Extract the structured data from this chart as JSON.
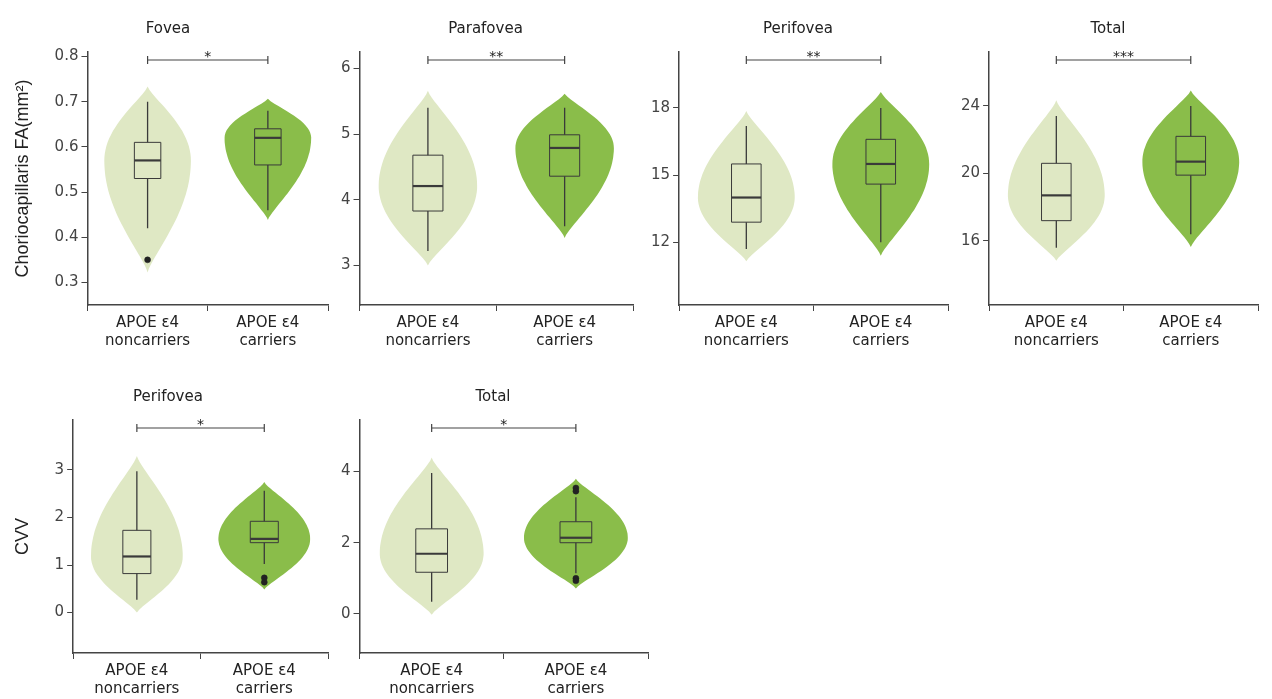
{
  "chart_data": [
    {
      "type": "box",
      "title": "Fovea",
      "ylabel": "Choriocapillaris FA(mm²)",
      "categories": [
        "APOE ε4 noncarriers",
        "APOE ε4 carriers"
      ],
      "colors": [
        "#dfe8c4",
        "#8abd4a"
      ],
      "ylim": [
        0.25,
        0.81
      ],
      "yticks": [
        0.3,
        0.4,
        0.5,
        0.6,
        0.7,
        0.8
      ],
      "annotations": [
        "*"
      ],
      "boxes": [
        {
          "low": 0.42,
          "q1": 0.53,
          "median": 0.57,
          "q3": 0.61,
          "high": 0.7,
          "outliers": [
            0.35
          ]
        },
        {
          "low": 0.46,
          "q1": 0.56,
          "median": 0.62,
          "q3": 0.64,
          "high": 0.68
        }
      ]
    },
    {
      "type": "box",
      "title": "Parafovea",
      "categories": [
        "APOE ε4 noncarriers",
        "APOE ε4 carriers"
      ],
      "colors": [
        "#dfe8c4",
        "#8abd4a"
      ],
      "ylim": [
        2.4,
        6.25
      ],
      "yticks": [
        3,
        4,
        5,
        6
      ],
      "annotations": [
        "**"
      ],
      "boxes": [
        {
          "low": 3.22,
          "q1": 3.83,
          "median": 4.21,
          "q3": 4.68,
          "high": 5.4
        },
        {
          "low": 3.6,
          "q1": 4.36,
          "median": 4.79,
          "q3": 4.99,
          "high": 5.4
        }
      ]
    },
    {
      "type": "box",
      "title": "Perifovea",
      "categories": [
        "APOE ε4 noncarriers",
        "APOE ε4 carriers"
      ],
      "colors": [
        "#dfe8c4",
        "#8abd4a"
      ],
      "ylim": [
        9.2,
        20.5
      ],
      "yticks": [
        12,
        15,
        18
      ],
      "annotations": [
        "**"
      ],
      "boxes": [
        {
          "low": 11.7,
          "q1": 12.9,
          "median": 14.0,
          "q3": 15.5,
          "high": 17.2
        },
        {
          "low": 12.0,
          "q1": 14.6,
          "median": 15.5,
          "q3": 16.6,
          "high": 18.0
        }
      ]
    },
    {
      "type": "box",
      "title": "Total",
      "categories": [
        "APOE ε4 noncarriers",
        "APOE ε4 carriers"
      ],
      "colors": [
        "#dfe8c4",
        "#8abd4a"
      ],
      "ylim": [
        12.2,
        27.2
      ],
      "yticks": [
        16,
        20,
        24
      ],
      "annotations": [
        "***"
      ],
      "boxes": [
        {
          "low": 15.6,
          "q1": 17.2,
          "median": 18.7,
          "q3": 20.6,
          "high": 23.4
        },
        {
          "low": 16.4,
          "q1": 19.9,
          "median": 20.7,
          "q3": 22.2,
          "high": 24.0
        }
      ]
    },
    {
      "type": "box",
      "title": "Perifovea",
      "ylabel": "CVV",
      "categories": [
        "APOE ε4 noncarriers",
        "APOE ε4 carriers"
      ],
      "colors": [
        "#dfe8c4",
        "#8abd4a"
      ],
      "ylim": [
        -0.85,
        4.05
      ],
      "yticks": [
        0,
        1,
        2,
        3
      ],
      "annotations": [
        "*"
      ],
      "boxes": [
        {
          "low": 0.27,
          "q1": 0.82,
          "median": 1.18,
          "q3": 1.73,
          "high": 2.97
        },
        {
          "low": 1.02,
          "q1": 1.47,
          "median": 1.55,
          "q3": 1.92,
          "high": 2.56,
          "outliers": [
            0.73,
            0.64
          ]
        }
      ]
    },
    {
      "type": "box",
      "title": "Total",
      "categories": [
        "APOE ε4 noncarriers",
        "APOE ε4 carriers"
      ],
      "colors": [
        "#dfe8c4",
        "#8abd4a"
      ],
      "ylim": [
        -1.1,
        5.45
      ],
      "yticks": [
        0,
        2,
        4
      ],
      "annotations": [
        "*"
      ],
      "boxes": [
        {
          "low": 0.34,
          "q1": 1.17,
          "median": 1.69,
          "q3": 2.39,
          "high": 3.96
        },
        {
          "low": 1.14,
          "q1": 2.0,
          "median": 2.14,
          "q3": 2.59,
          "high": 3.28,
          "outliers": [
            3.54,
            3.45,
            1.0,
            0.93
          ]
        }
      ]
    }
  ]
}
